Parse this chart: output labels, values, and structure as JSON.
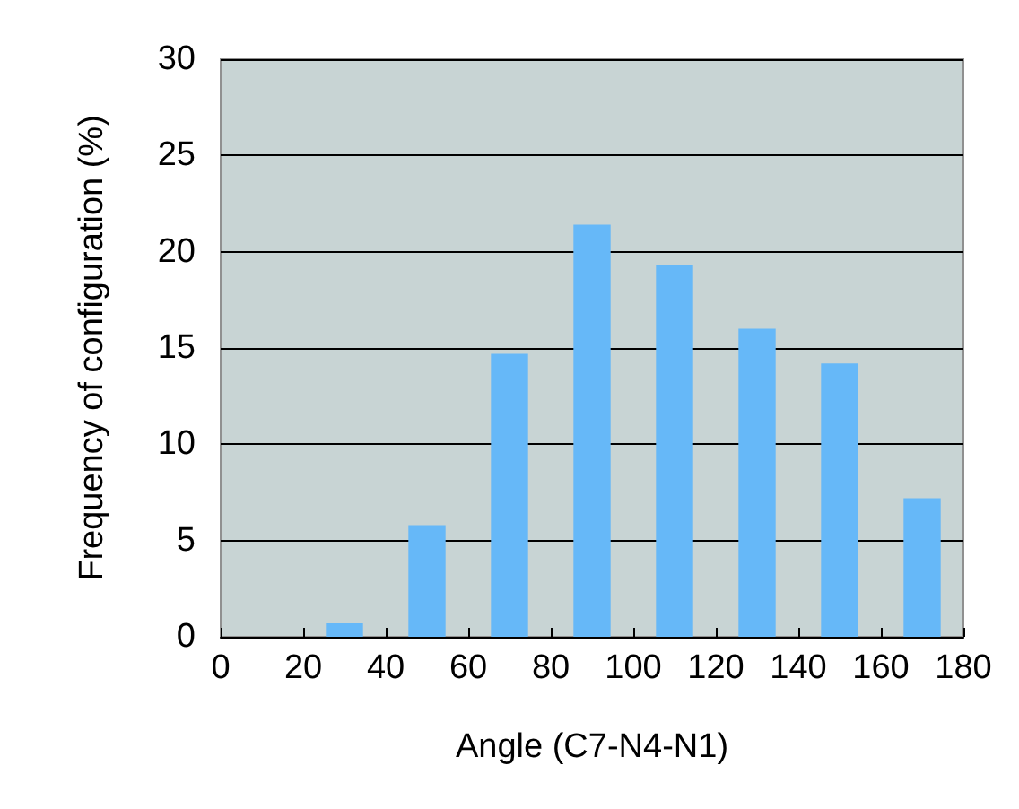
{
  "chart_data": {
    "type": "histogram",
    "xlabel": "Angle (C7-N4-N1)",
    "ylabel": "Frequency of configuration (%)",
    "bins": [
      0,
      20,
      40,
      60,
      80,
      100,
      120,
      140,
      160,
      180
    ],
    "values": [
      0,
      0.7,
      5.8,
      14.7,
      21.4,
      19.3,
      16,
      14.2,
      7.2
    ],
    "color": "#66b8f8",
    "xlim": [
      0,
      180
    ],
    "xticks": [
      0,
      20,
      40,
      60,
      80,
      100,
      120,
      140,
      160,
      180
    ],
    "ylim": [
      0,
      30
    ],
    "yticks": [
      0,
      5,
      10,
      15,
      20,
      25,
      30
    ],
    "grid": "y"
  }
}
